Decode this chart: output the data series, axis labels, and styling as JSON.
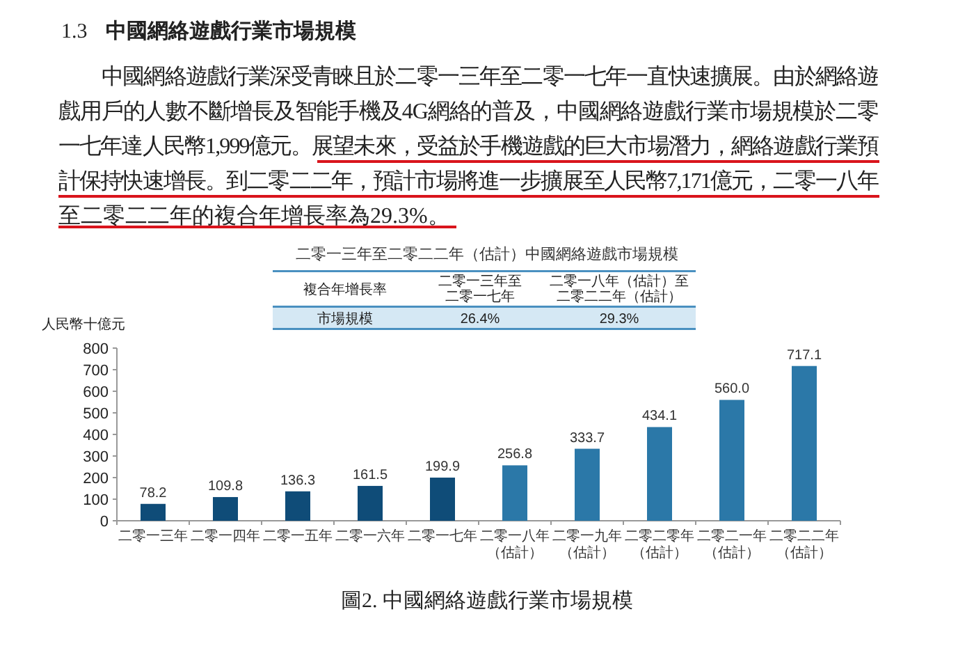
{
  "chart_data": {
    "type": "bar",
    "title": "二零一三年至二零二二年（估計）中國網絡遊戲市場規模",
    "ylabel": "人民幣十億元",
    "categories": [
      "二零一三年",
      "二零一四年",
      "二零一五年",
      "二零一六年",
      "二零一七年",
      "二零一八年（估計）",
      "二零一九年（估計）",
      "二零二零年（估計）",
      "二零二一年（估計）",
      "二零二二年（估計）"
    ],
    "values": [
      78.2,
      109.8,
      136.3,
      161.5,
      199.9,
      256.8,
      333.7,
      434.1,
      560.0,
      717.1
    ],
    "colors": [
      "#0f4c78",
      "#0f4c78",
      "#0f4c78",
      "#0f4c78",
      "#0f4c78",
      "#2b78a8",
      "#2b78a8",
      "#2b78a8",
      "#2b78a8",
      "#2b78a8"
    ],
    "value_labels": [
      "78.2",
      "109.8",
      "136.3",
      "161.5",
      "199.9",
      "256.8",
      "333.7",
      "434.1",
      "560.0",
      "717.1"
    ],
    "ylim": [
      0,
      800
    ],
    "yticks": [
      0,
      100,
      200,
      300,
      400,
      500,
      600,
      700,
      800
    ],
    "annotations": [
      "1.3",
      "中國網絡遊戲行業市場規模",
      "中國網絡遊戲行業深受青睞且於二零一三年至二零一七年一直快速擴展。由於網絡遊",
      "戲用戶的人數不斷增長及智能手機及4G網絡的普及，中國網絡遊戲行業市場規模於二零",
      "一七年達人民幣1,999億元。展望未來，受益於手機遊戲的巨大市場潛力，網絡遊戲行業預",
      "計保持快速增長。到二零二二年，預計市場將進一步擴展至人民幣7,171億元，二零一八年",
      "至二零二二年的複合年增長率為29.3%。",
      "複合年增長率",
      "二零一三年至二零一七年",
      "二零一八年（估計）至二零二二年（估計）",
      "市場規模",
      "26.4%",
      "29.3%",
      "圖2. 中國網絡遊戲行業市場規模"
    ]
  }
}
